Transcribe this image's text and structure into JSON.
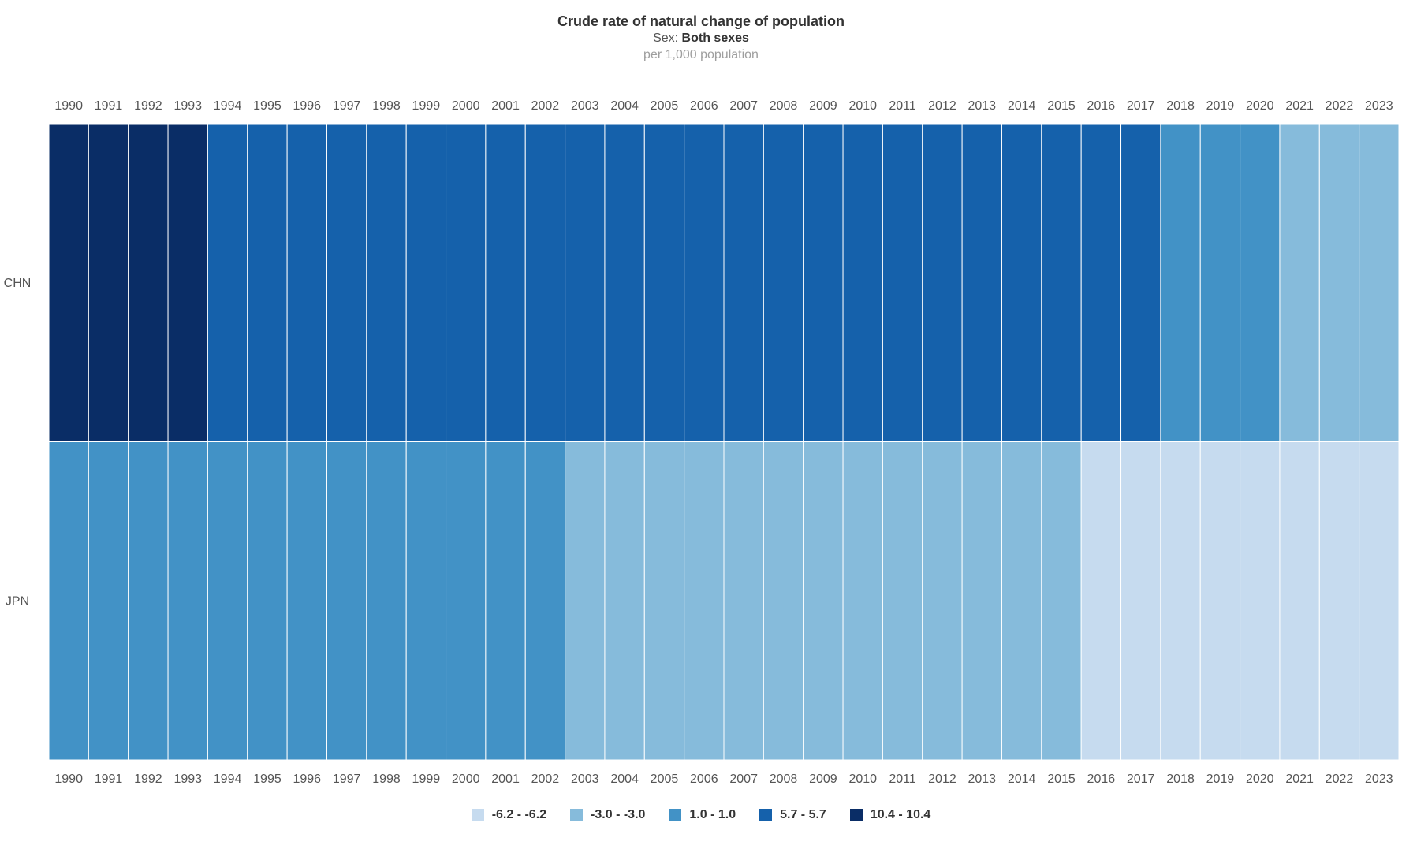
{
  "chart_data": {
    "type": "heatmap",
    "title": "Crude rate of natural change of population",
    "subtitle_label": "Sex:",
    "subtitle_value": "Both sexes",
    "unit": "per 1,000 population",
    "x": [
      "1990",
      "1991",
      "1992",
      "1993",
      "1994",
      "1995",
      "1996",
      "1997",
      "1998",
      "1999",
      "2000",
      "2001",
      "2002",
      "2003",
      "2004",
      "2005",
      "2006",
      "2007",
      "2008",
      "2009",
      "2010",
      "2011",
      "2012",
      "2013",
      "2014",
      "2015",
      "2016",
      "2017",
      "2018",
      "2019",
      "2020",
      "2021",
      "2022",
      "2023"
    ],
    "y": [
      "CHN",
      "JPN"
    ],
    "values": [
      [
        10.4,
        10.4,
        10.4,
        10.4,
        5.7,
        5.7,
        5.7,
        5.7,
        5.7,
        5.7,
        5.7,
        5.7,
        5.7,
        5.7,
        5.7,
        5.7,
        5.7,
        5.7,
        5.7,
        5.7,
        5.7,
        5.7,
        5.7,
        5.7,
        5.7,
        5.7,
        5.7,
        5.7,
        1.0,
        1.0,
        1.0,
        -3.0,
        -3.0,
        -3.0
      ],
      [
        1.0,
        1.0,
        1.0,
        1.0,
        1.0,
        1.0,
        1.0,
        1.0,
        1.0,
        1.0,
        1.0,
        1.0,
        1.0,
        -3.0,
        -3.0,
        -3.0,
        -3.0,
        -3.0,
        -3.0,
        -3.0,
        -3.0,
        -3.0,
        -3.0,
        -3.0,
        -3.0,
        -3.0,
        -6.2,
        -6.2,
        -6.2,
        -6.2,
        -6.2,
        -6.2,
        -6.2,
        -6.2
      ]
    ],
    "legend": [
      {
        "label": "-6.2 - -6.2",
        "value": -6.2,
        "color": "#c6dbef"
      },
      {
        "label": "-3.0 - -3.0",
        "value": -3.0,
        "color": "#86bbdb"
      },
      {
        "label": "1.0 - 1.0",
        "value": 1.0,
        "color": "#4292c6"
      },
      {
        "label": "5.7 - 5.7",
        "value": 5.7,
        "color": "#1561ab"
      },
      {
        "label": "10.4 - 10.4",
        "value": 10.4,
        "color": "#0a2d66"
      }
    ],
    "legend_position": "bottom"
  }
}
